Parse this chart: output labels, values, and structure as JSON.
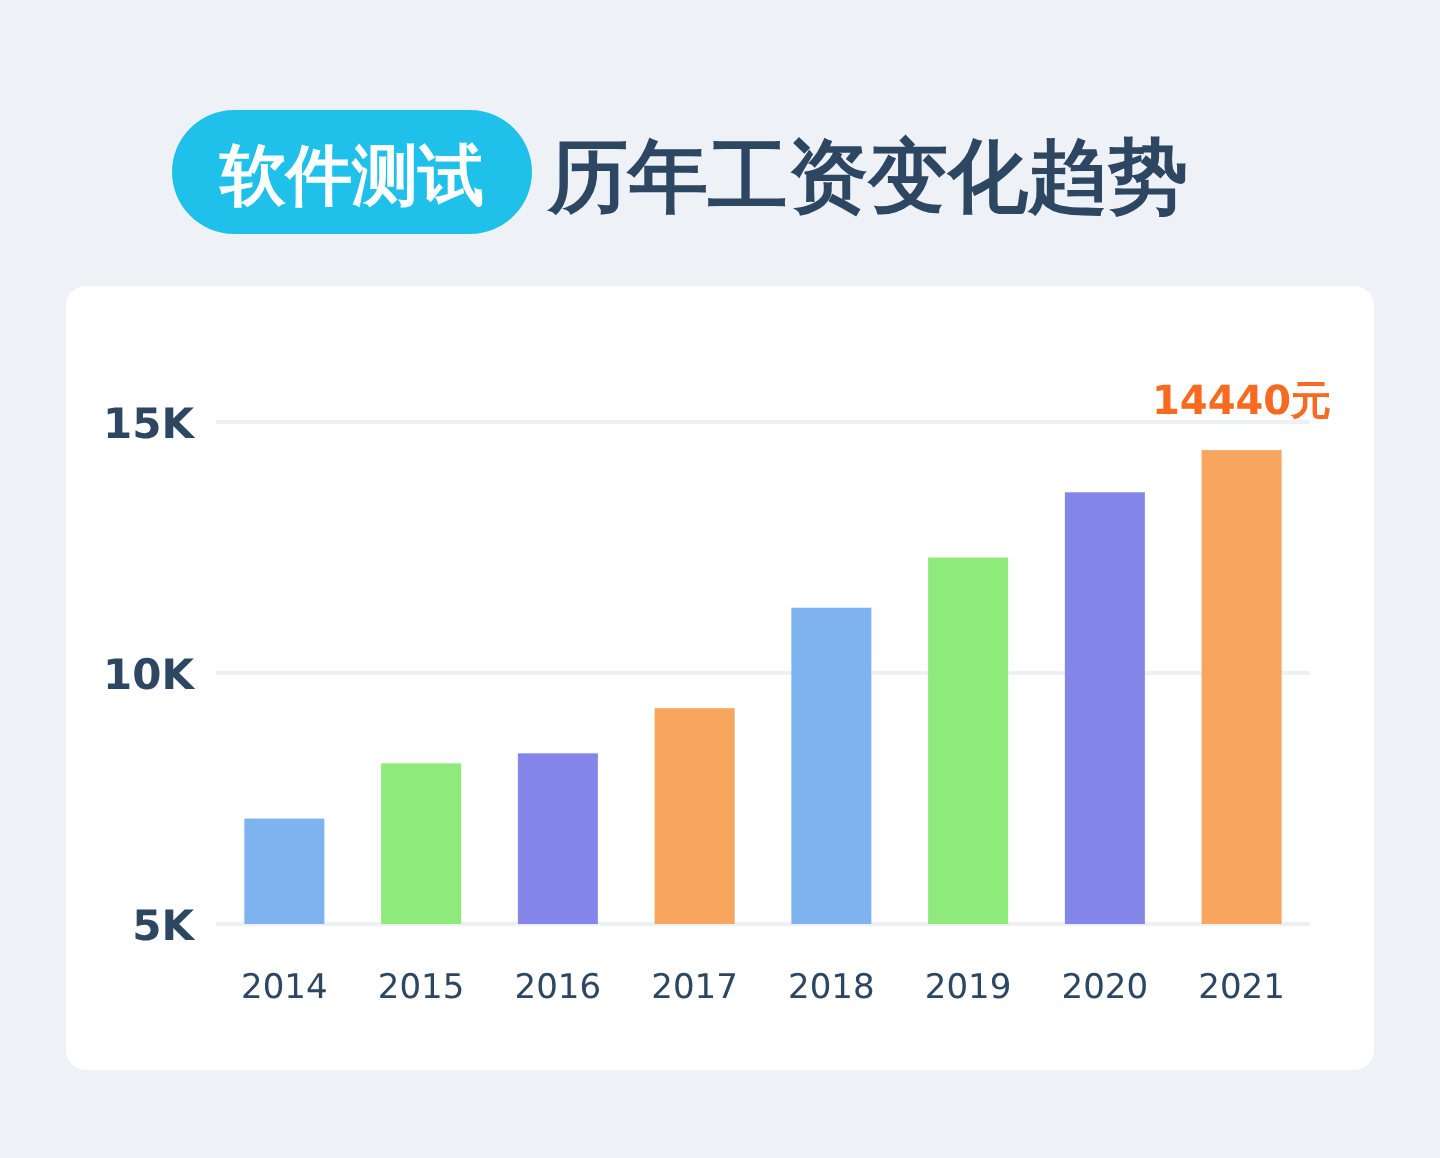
{
  "chart_data": {
    "type": "bar",
    "title": "软件测试",
    "subtitle": "历年工资变化趋势",
    "categories": [
      "2014",
      "2015",
      "2016",
      "2017",
      "2018",
      "2019",
      "2020",
      "2021"
    ],
    "values": [
      7100,
      8200,
      8400,
      9300,
      11300,
      12300,
      13600,
      14440
    ],
    "colors": [
      "#7fb3ef",
      "#8eea7a",
      "#8586ea",
      "#f8a55f",
      "#7fb3ef",
      "#8eea7a",
      "#8586ea",
      "#f8a55f"
    ],
    "value_labels": [
      null,
      null,
      null,
      null,
      null,
      null,
      null,
      "14440元"
    ],
    "ylim": [
      5000,
      15000
    ],
    "yticks": [
      {
        "value": 5000,
        "label": "5K"
      },
      {
        "value": 10000,
        "label": "10K"
      },
      {
        "value": 15000,
        "label": "15K"
      }
    ],
    "grid": "y"
  }
}
